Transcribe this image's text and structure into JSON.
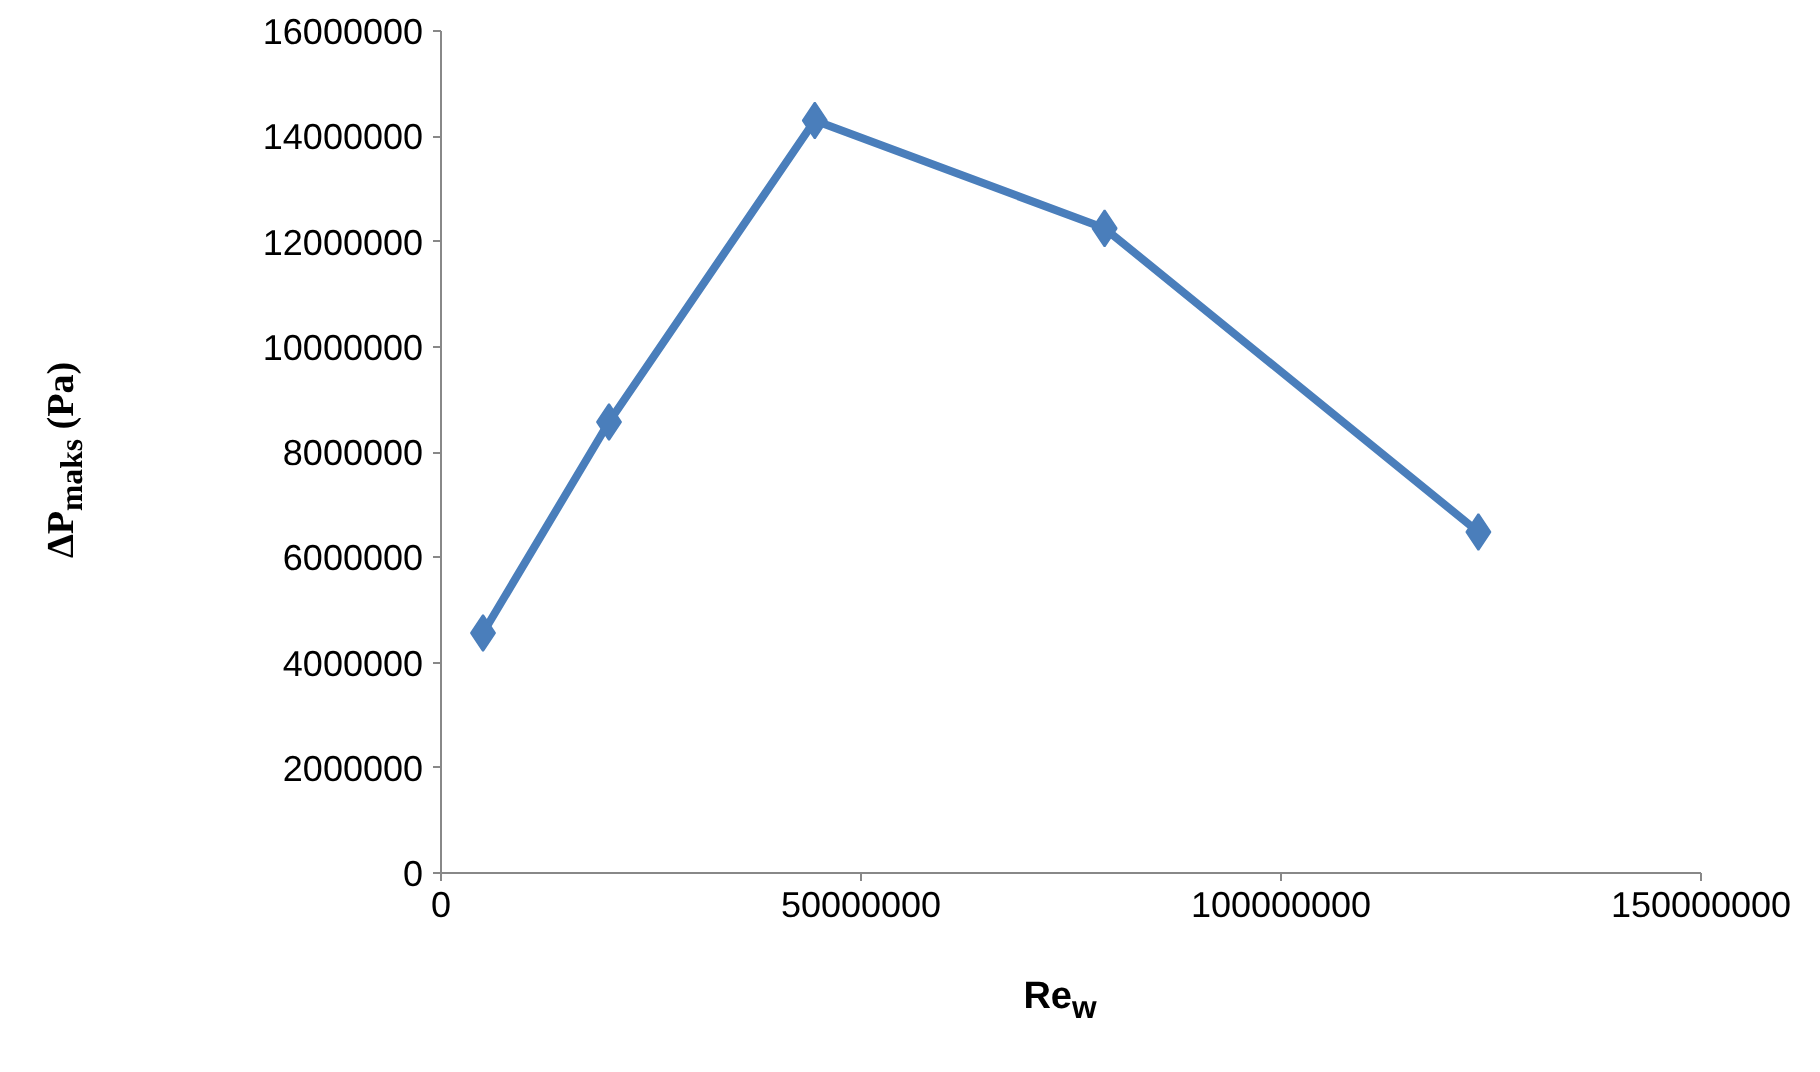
{
  "chart_data": {
    "type": "line",
    "xlabel": "Re$_{w}$",
    "ylabel": "ΔP$_{maks}$ (Pa)",
    "x": [
      5000000,
      20000000,
      44500000,
      79000000,
      123500000
    ],
    "series": [
      {
        "color": "#4a7ebb",
        "values": [
          4560000,
          8570000,
          14300000,
          12250000,
          6480000
        ]
      }
    ],
    "xlim": [
      0,
      150000000
    ],
    "xticks": [
      0,
      50000000,
      100000000,
      150000000
    ],
    "ylim": [
      0,
      16000000
    ],
    "yticks": [
      0,
      2000000,
      4000000,
      6000000,
      8000000,
      10000000,
      12000000,
      14000000,
      16000000
    ],
    "grid": false,
    "marker": "diamond",
    "line_style": "solid"
  }
}
